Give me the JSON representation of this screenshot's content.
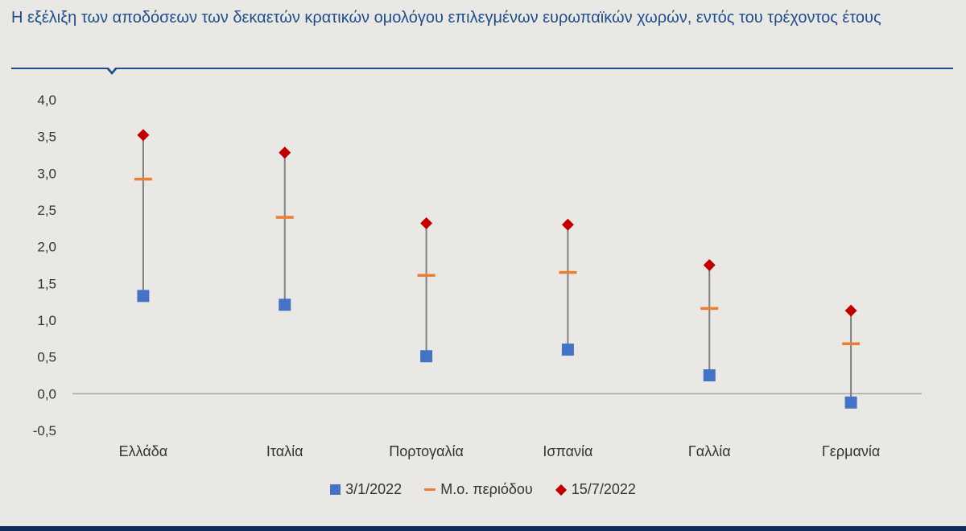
{
  "title": "Η εξέλιξη των αποδόσεων των δεκαετών κρατικών ομολόγου επιλεγμένων ευρωπαϊκών χωρών, εντός του τρέχοντος έτους",
  "chart_data": {
    "type": "scatter",
    "subtype": "high-low range (dot plot)",
    "categories": [
      "Ελλάδα",
      "Ιταλία",
      "Πορτογαλία",
      "Ισπανία",
      "Γαλλία",
      "Γερμανία"
    ],
    "series": [
      {
        "name": "3/1/2022",
        "marker": "square",
        "color": "#4472c4",
        "values": [
          1.33,
          1.21,
          0.51,
          0.6,
          0.25,
          -0.12
        ]
      },
      {
        "name": "Μ.ο. περιόδου",
        "marker": "dash",
        "color": "#ed7d31",
        "values": [
          2.92,
          2.4,
          1.61,
          1.65,
          1.16,
          0.68
        ]
      },
      {
        "name": "15/7/2022",
        "marker": "diamond",
        "color": "#c00000",
        "values": [
          3.52,
          3.28,
          2.32,
          2.3,
          1.75,
          1.13
        ]
      }
    ],
    "ylim": [
      -0.5,
      4.0
    ],
    "yticks": [
      "4,0",
      "3,5",
      "3,0",
      "2,5",
      "2,0",
      "1,5",
      "1,0",
      "0,5",
      "0,0",
      "-0,5"
    ],
    "yticks_values": [
      4.0,
      3.5,
      3.0,
      2.5,
      2.0,
      1.5,
      1.0,
      0.5,
      0.0,
      -0.5
    ],
    "grid": false,
    "legend_position": "bottom",
    "range_line_color": "#7f7f7f"
  }
}
